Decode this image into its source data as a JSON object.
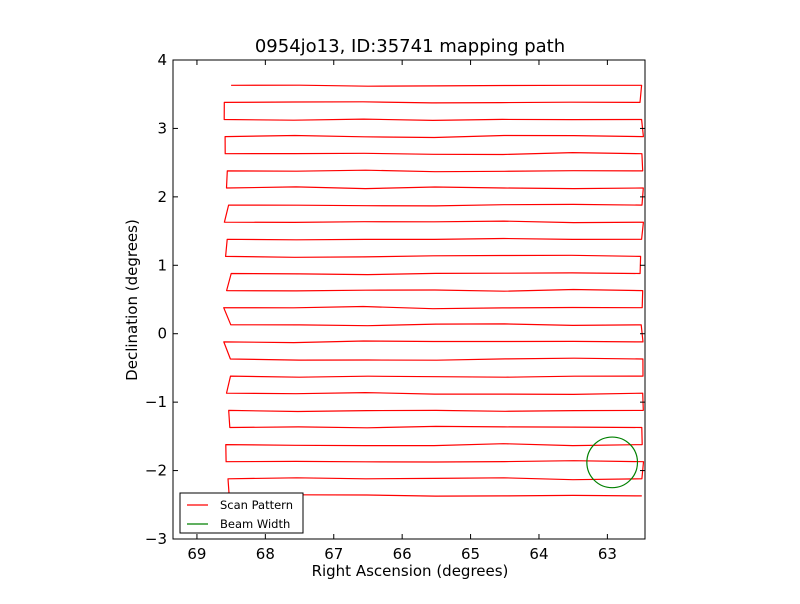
{
  "chart_data": {
    "type": "line",
    "title": "0954jo13, ID:35741 mapping path",
    "xlabel": "Right Ascension (degrees)",
    "ylabel": "Declination (degrees)",
    "xlim": [
      69.35,
      62.45
    ],
    "ylim": [
      -3,
      4
    ],
    "x_inverted": true,
    "xticks": [
      69,
      68,
      67,
      66,
      65,
      64,
      63
    ],
    "xtick_labels": [
      "69",
      "68",
      "67",
      "66",
      "65",
      "64",
      "63"
    ],
    "yticks": [
      -3,
      -2,
      -1,
      0,
      1,
      2,
      3,
      4
    ],
    "ytick_labels": [
      "−3",
      "−2",
      "−1",
      "0",
      "1",
      "2",
      "3",
      "4"
    ],
    "grid": false,
    "legend": {
      "position": "lower-left",
      "entries": [
        {
          "label": "Scan Pattern",
          "color": "#ff0000"
        },
        {
          "label": "Beam Width",
          "color": "#008000"
        }
      ]
    },
    "scan_pattern": {
      "color": "#ff0000",
      "ra_left": 68.55,
      "ra_right": 62.5,
      "dec_rows": [
        3.63,
        3.38,
        3.13,
        2.88,
        2.63,
        2.38,
        2.13,
        1.88,
        1.63,
        1.38,
        1.13,
        0.88,
        0.63,
        0.38,
        0.13,
        -0.12,
        -0.37,
        -0.62,
        -0.87,
        -1.12,
        -1.37,
        -1.62,
        -1.87,
        -2.12,
        -2.37
      ],
      "first_row_start_ra": 68.5
    },
    "beam_width": {
      "color": "#008000",
      "center_ra": 62.93,
      "center_dec": -1.88,
      "radius_deg": 0.37
    }
  }
}
